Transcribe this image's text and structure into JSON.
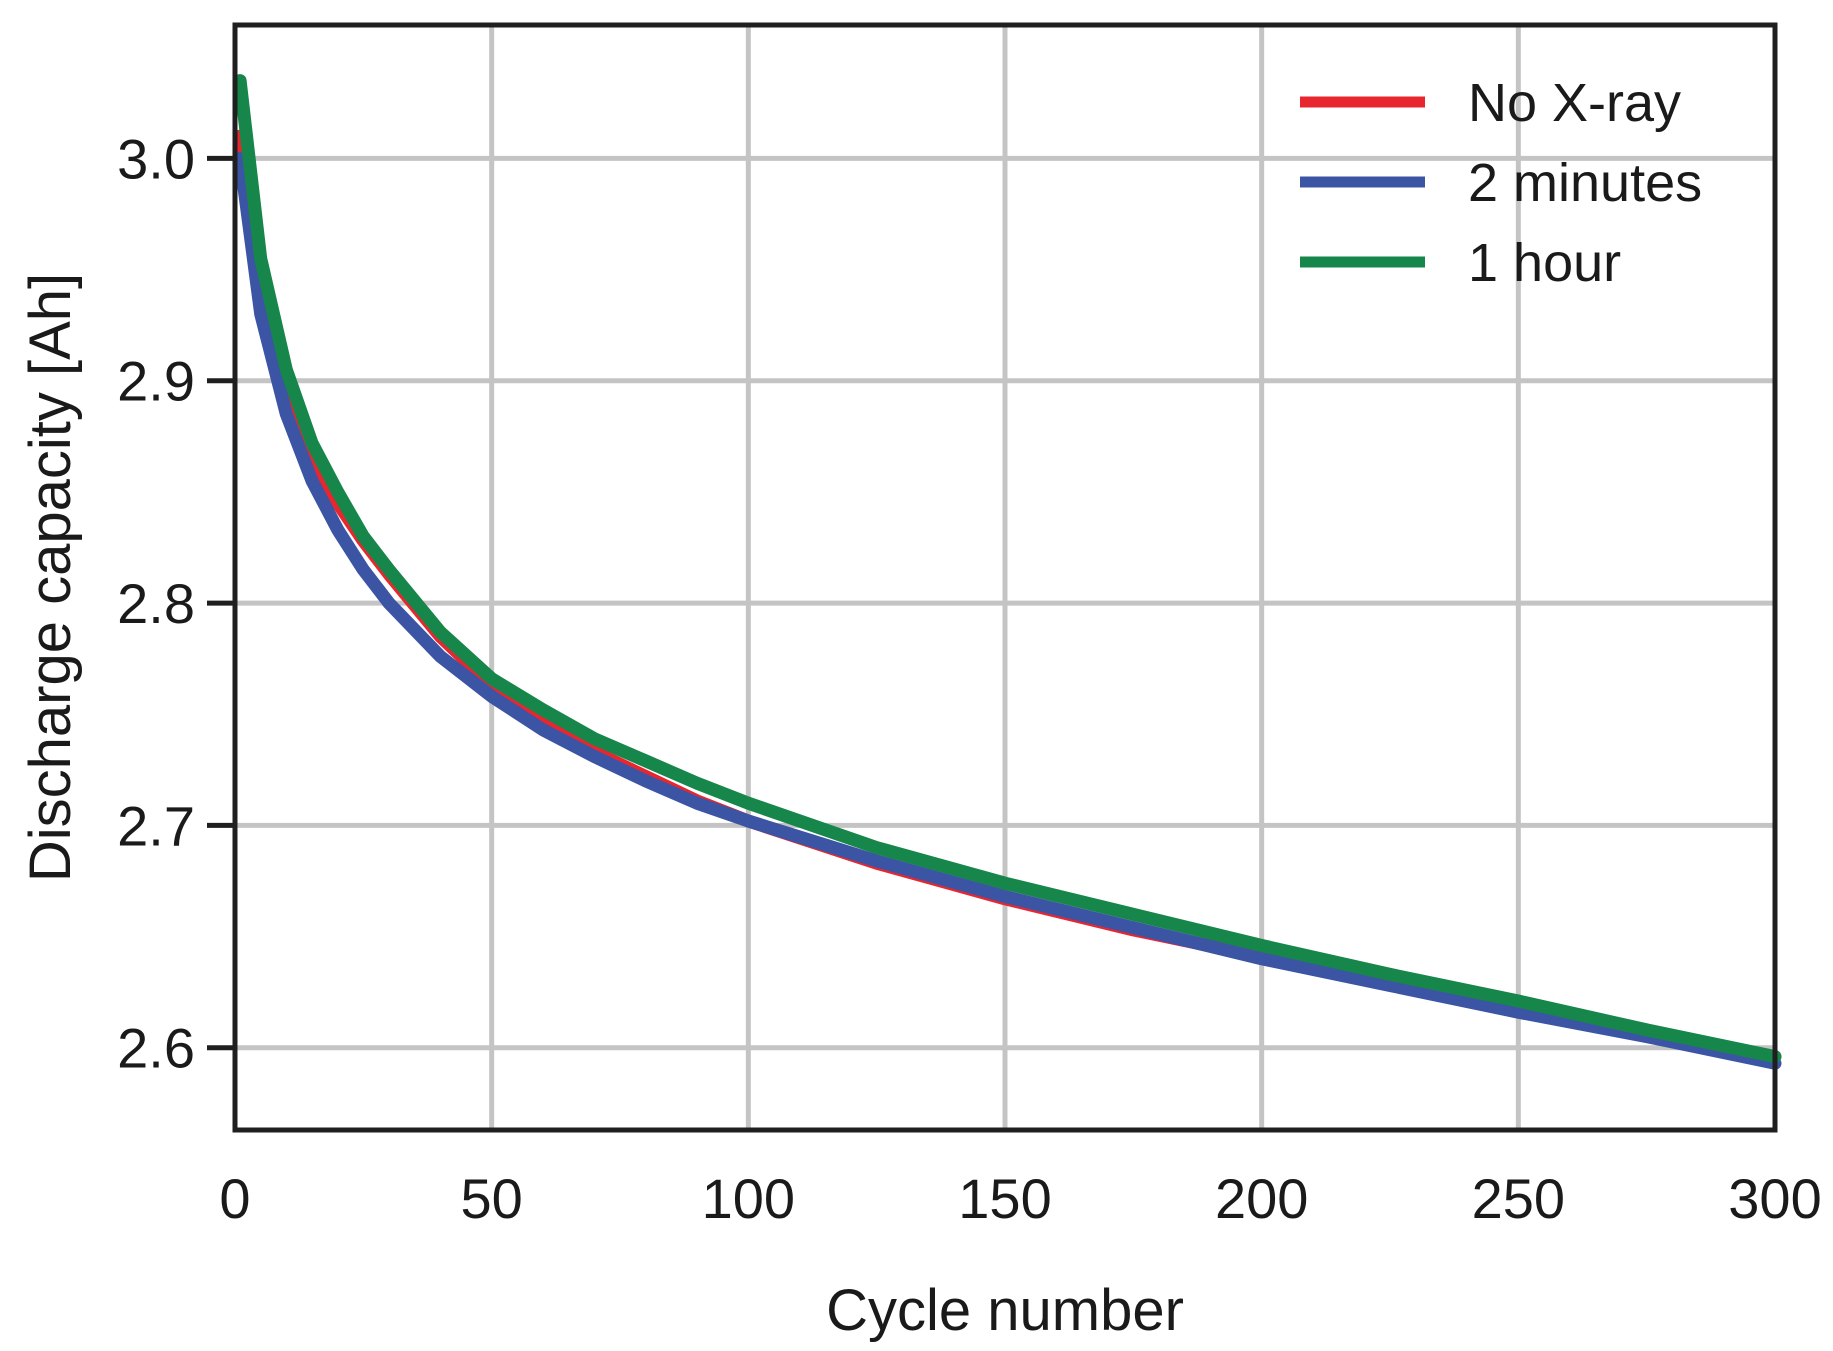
{
  "chart_data": {
    "type": "line",
    "title": "",
    "xlabel": "Cycle number",
    "ylabel": "Discharge capacity [Ah]",
    "xlim": [
      0,
      300
    ],
    "ylim": [
      2.563,
      3.06
    ],
    "xticks": [
      0,
      50,
      100,
      150,
      200,
      250,
      300
    ],
    "xtick_labels": [
      "0",
      "50",
      "100",
      "150",
      "200",
      "250",
      "300"
    ],
    "yticks": [
      2.6,
      2.7,
      2.8,
      2.9,
      3.0
    ],
    "ytick_labels": [
      "2.6",
      "2.7",
      "2.8",
      "2.9",
      "3.0"
    ],
    "grid": true,
    "legend_position": "top-right",
    "series": [
      {
        "name": "No X-ray",
        "color": "#e8262f",
        "x": [
          1,
          5,
          10,
          15,
          20,
          25,
          30,
          40,
          50,
          60,
          70,
          80,
          90,
          100,
          125,
          150,
          175,
          200,
          225,
          250,
          275,
          300
        ],
        "y": [
          3.01,
          2.945,
          2.895,
          2.865,
          2.845,
          2.828,
          2.813,
          2.785,
          2.763,
          2.746,
          2.733,
          2.722,
          2.711,
          2.702,
          2.683,
          2.667,
          2.653,
          2.641,
          2.63,
          2.62,
          2.606,
          2.596
        ]
      },
      {
        "name": "2 minutes",
        "color": "#3c54a4",
        "x": [
          1,
          5,
          10,
          15,
          20,
          25,
          30,
          40,
          50,
          60,
          70,
          80,
          90,
          100,
          125,
          150,
          175,
          200,
          225,
          250,
          275,
          300
        ],
        "y": [
          3.0,
          2.93,
          2.885,
          2.855,
          2.833,
          2.815,
          2.8,
          2.776,
          2.758,
          2.743,
          2.731,
          2.72,
          2.71,
          2.702,
          2.684,
          2.668,
          2.654,
          2.64,
          2.628,
          2.616,
          2.605,
          2.593
        ]
      },
      {
        "name": "1 hour",
        "color": "#17864a",
        "x": [
          1,
          5,
          10,
          15,
          20,
          25,
          30,
          40,
          50,
          60,
          70,
          80,
          90,
          100,
          125,
          150,
          175,
          200,
          225,
          250,
          275,
          300
        ],
        "y": [
          3.035,
          2.955,
          2.905,
          2.872,
          2.85,
          2.83,
          2.815,
          2.787,
          2.766,
          2.752,
          2.739,
          2.729,
          2.719,
          2.71,
          2.69,
          2.674,
          2.66,
          2.646,
          2.633,
          2.621,
          2.608,
          2.596
        ]
      }
    ]
  }
}
